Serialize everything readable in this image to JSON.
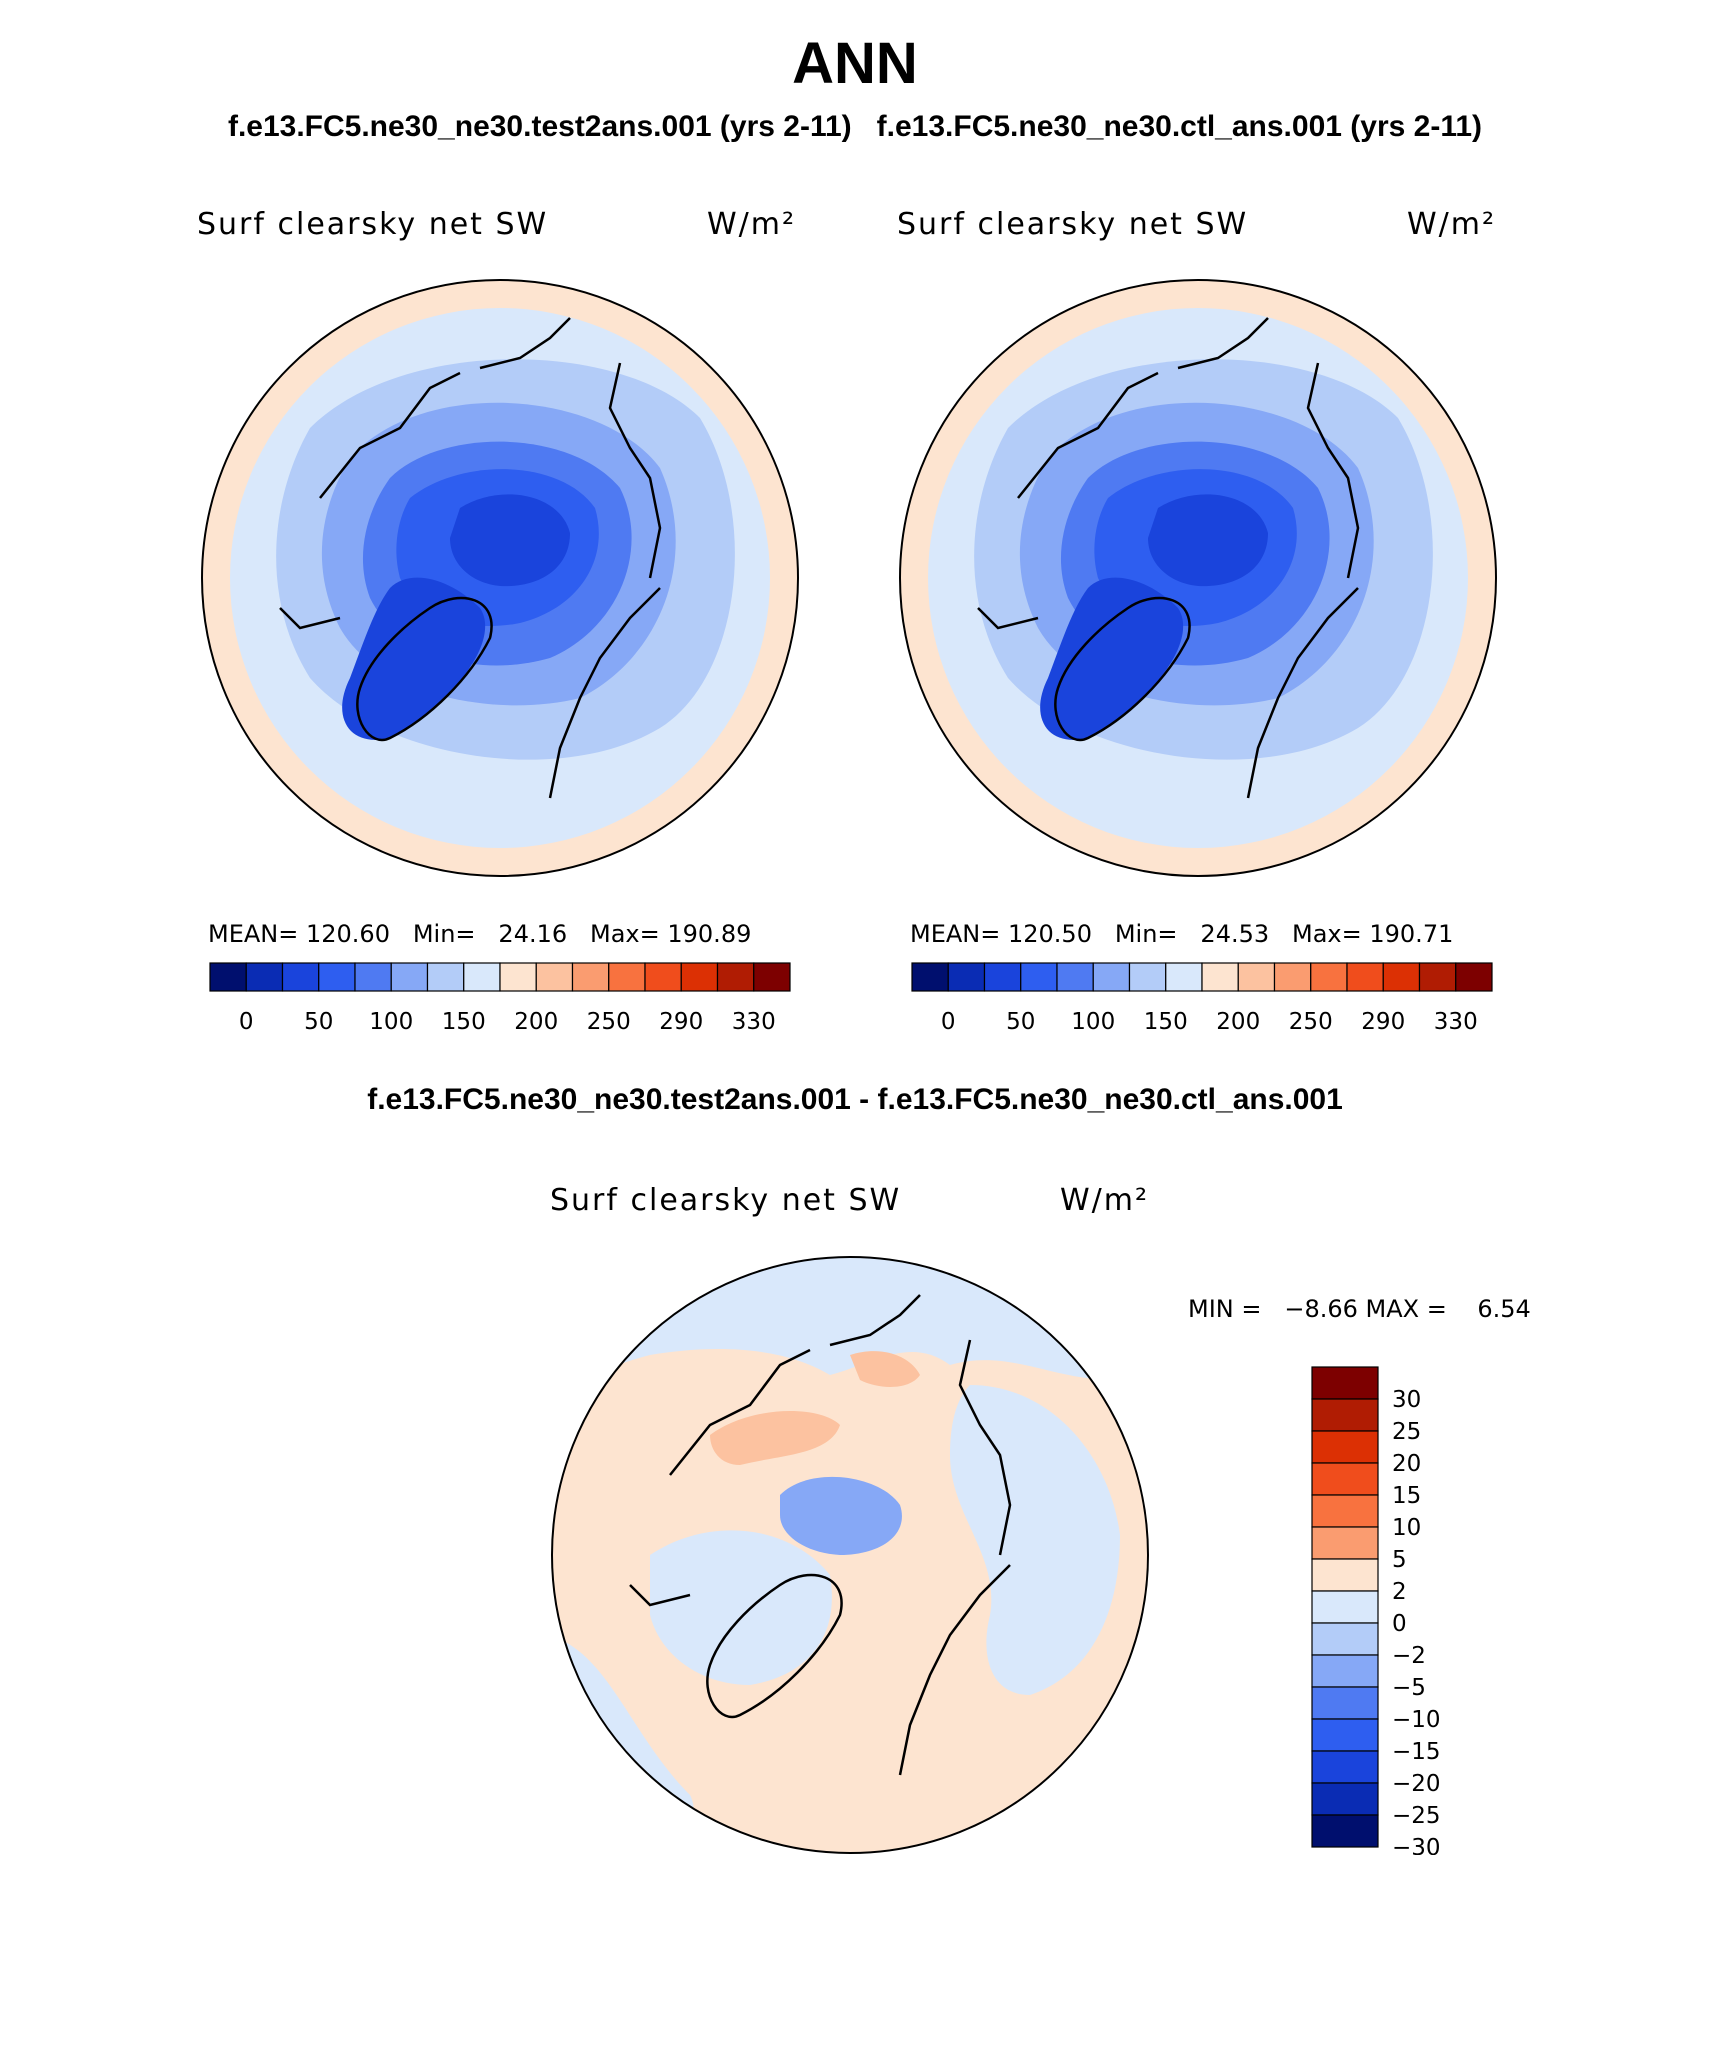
{
  "page": {
    "title": "ANN",
    "case_titles": [
      "f.e13.FC5.ne30_ne30.test2ans.001 (yrs 2-11)",
      "f.e13.FC5.ne30_ne30.ctl_ans.001 (yrs 2-11)"
    ],
    "diff_title": "f.e13.FC5.ne30_ne30.test2ans.001 - f.e13.FC5.ne30_ne30.ctl_ans.001"
  },
  "chart_data": [
    {
      "type": "heatmap",
      "projection": "north-polar-stereographic",
      "variable": "Surf clearsky net SW",
      "units": "W/m²",
      "stats_text": "MEAN= 120.60   Min=   24.16   Max= 190.89",
      "mean": 120.6,
      "min": 24.16,
      "max": 190.89,
      "colorbar_orientation": "horizontal",
      "colorbar_labels": [
        "0",
        "50",
        "100",
        "150",
        "200",
        "250",
        "290",
        "330"
      ],
      "colorbar_colors": [
        "#000f6e",
        "#0a2cb4",
        "#1a44dc",
        "#2e5ef0",
        "#4f7af2",
        "#86a8f6",
        "#b3ccf8",
        "#d9e8fb",
        "#fde4d0",
        "#fcc2a0",
        "#fa9c70",
        "#f8723f",
        "#f04d1c",
        "#dc3004",
        "#b01c03",
        "#7d0000"
      ]
    },
    {
      "type": "heatmap",
      "projection": "north-polar-stereographic",
      "variable": "Surf clearsky net SW",
      "units": "W/m²",
      "stats_text": "MEAN= 120.50   Min=   24.53   Max= 190.71",
      "mean": 120.5,
      "min": 24.53,
      "max": 190.71,
      "colorbar_orientation": "horizontal",
      "colorbar_labels": [
        "0",
        "50",
        "100",
        "150",
        "200",
        "250",
        "290",
        "330"
      ],
      "colorbar_colors": [
        "#000f6e",
        "#0a2cb4",
        "#1a44dc",
        "#2e5ef0",
        "#4f7af2",
        "#86a8f6",
        "#b3ccf8",
        "#d9e8fb",
        "#fde4d0",
        "#fcc2a0",
        "#fa9c70",
        "#f8723f",
        "#f04d1c",
        "#dc3004",
        "#b01c03",
        "#7d0000"
      ]
    },
    {
      "type": "heatmap",
      "projection": "north-polar-stereographic",
      "variable": "Surf clearsky net SW",
      "units": "W/m²",
      "stats_text": "MIN =   −8.66 MAX =    6.54",
      "min": -8.66,
      "max": 6.54,
      "colorbar_orientation": "vertical",
      "colorbar_labels": [
        "30",
        "25",
        "20",
        "15",
        "10",
        "5",
        "2",
        "0",
        "−2",
        "−5",
        "−10",
        "−15",
        "−20",
        "−25",
        "−30"
      ],
      "colorbar_colors": [
        "#7d0000",
        "#b01c03",
        "#dc3004",
        "#f04d1c",
        "#f8723f",
        "#fa9c70",
        "#fde4d0",
        "#d9e8fb",
        "#b3ccf8",
        "#86a8f6",
        "#4f7af2",
        "#2e5ef0",
        "#1a44dc",
        "#0a2cb4",
        "#000f6e"
      ]
    }
  ]
}
